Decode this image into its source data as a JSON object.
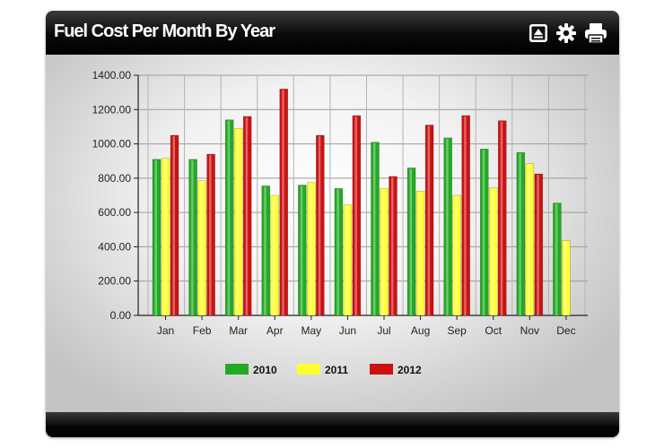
{
  "header": {
    "title": "Fuel Cost Per Month By Year",
    "icons": [
      "expand-icon",
      "gear-icon",
      "print-icon"
    ]
  },
  "colors": {
    "series_2010": "#22aa22",
    "series_2011": "#ffff33",
    "series_2012": "#cc1111"
  },
  "chart_data": {
    "type": "bar",
    "title": "",
    "xlabel": "",
    "ylabel": "",
    "ylim": [
      0,
      1400
    ],
    "yticks": [
      "0.00",
      "200.00",
      "400.00",
      "600.00",
      "800.00",
      "1000.00",
      "1200.00",
      "1400.00"
    ],
    "categories": [
      "Jan",
      "Feb",
      "Mar",
      "Apr",
      "May",
      "Jun",
      "Jul",
      "Aug",
      "Sep",
      "Oct",
      "Nov",
      "Dec"
    ],
    "grid": true,
    "legend": "bottom-center",
    "series": [
      {
        "name": "2010",
        "color": "#22aa22",
        "values": [
          910,
          910,
          1140,
          755,
          760,
          740,
          1010,
          860,
          1035,
          970,
          950,
          655
        ]
      },
      {
        "name": "2011",
        "color": "#ffff33",
        "values": [
          915,
          785,
          1090,
          700,
          775,
          645,
          740,
          725,
          700,
          745,
          885,
          435
        ]
      },
      {
        "name": "2012",
        "color": "#cc1111",
        "values": [
          1050,
          940,
          1160,
          1320,
          1050,
          1165,
          810,
          1110,
          1165,
          1135,
          825,
          null
        ]
      }
    ]
  }
}
